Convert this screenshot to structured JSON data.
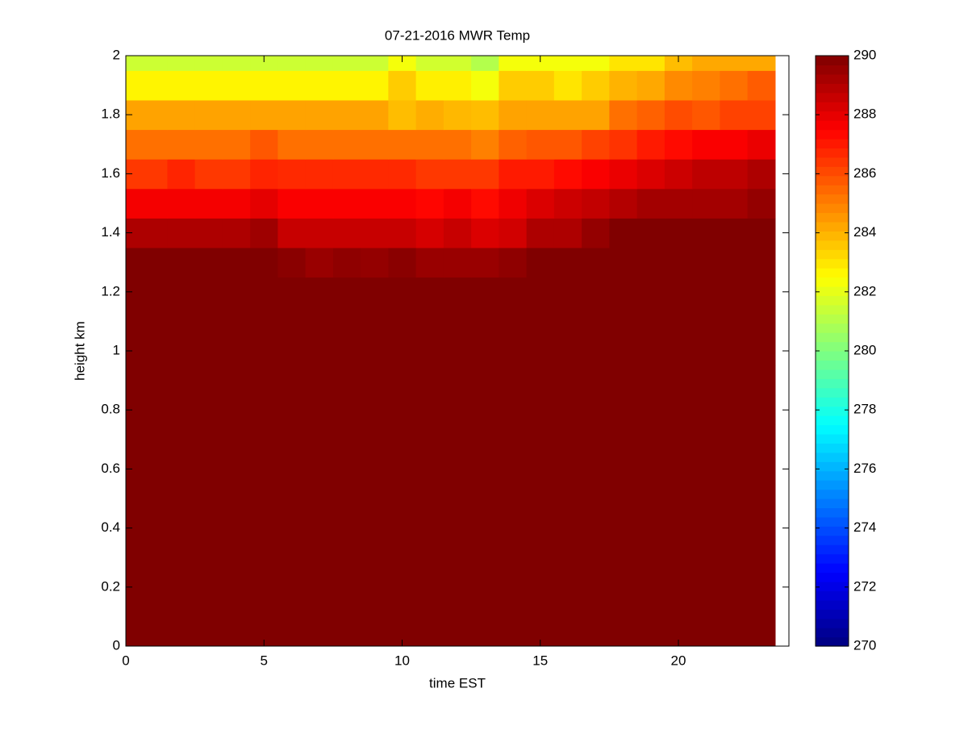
{
  "chart_data": {
    "type": "heatmap",
    "title": "07-21-2016 MWR Temp",
    "x_label": "time EST",
    "y_label": "height km",
    "x": [
      0,
      1,
      2,
      3,
      4,
      5,
      6,
      7,
      8,
      9,
      10,
      11,
      12,
      13,
      14,
      15,
      16,
      17,
      18,
      19,
      20,
      21,
      22,
      23
    ],
    "y": [
      0,
      0.1,
      0.2,
      0.3,
      0.4,
      0.5,
      0.6,
      0.7,
      0.8,
      0.9,
      1,
      1.1,
      1.2,
      1.3,
      1.4,
      1.5,
      1.6,
      1.7,
      1.8,
      1.9,
      2
    ],
    "z": [
      [
        290,
        290,
        290,
        290,
        290,
        290,
        290,
        290,
        290,
        290,
        290,
        290,
        290,
        290,
        290,
        290,
        290,
        290,
        290,
        290,
        290,
        290,
        290,
        290
      ],
      [
        290,
        290,
        290,
        290,
        290,
        290,
        290,
        290,
        290,
        290,
        290,
        290,
        290,
        290,
        290,
        290,
        290,
        290,
        290,
        290,
        290,
        290,
        290,
        290
      ],
      [
        290,
        290,
        290,
        290,
        290,
        290,
        290,
        290,
        290,
        290,
        290,
        290,
        290,
        290,
        290,
        290,
        290,
        290,
        290,
        290,
        290,
        290,
        290,
        290
      ],
      [
        290,
        290,
        290,
        290,
        290,
        290,
        290,
        290,
        290,
        290,
        290,
        290,
        290,
        290,
        290,
        290,
        290,
        290,
        290,
        290,
        290,
        290,
        290,
        290
      ],
      [
        290,
        290,
        290,
        290,
        290,
        290,
        290,
        290,
        290,
        290,
        290,
        290,
        290,
        290,
        290,
        290,
        290,
        290,
        290,
        290,
        290,
        290,
        290,
        290
      ],
      [
        290,
        290,
        290,
        290,
        290,
        290,
        290,
        290,
        290,
        290,
        290,
        290,
        290,
        290,
        290,
        290,
        290,
        290,
        290,
        290,
        290,
        290,
        290,
        290
      ],
      [
        290,
        290,
        290,
        290,
        290,
        290,
        290,
        290,
        290,
        290,
        290,
        290,
        290,
        290,
        290,
        290,
        290,
        290,
        290,
        290,
        290,
        290,
        290,
        290
      ],
      [
        290,
        290,
        290,
        290,
        290,
        290,
        290,
        290,
        290,
        290,
        290,
        290,
        290,
        290,
        290,
        290,
        290,
        290,
        290,
        290,
        290,
        290,
        290,
        290
      ],
      [
        290,
        290,
        290,
        290,
        290,
        290,
        290,
        290,
        290,
        290,
        290,
        290,
        290,
        290,
        290,
        290,
        290,
        290,
        290,
        290,
        290,
        290,
        290,
        290
      ],
      [
        290,
        290,
        290,
        290,
        290,
        290,
        290,
        290,
        290,
        290,
        290,
        290,
        290,
        290,
        290,
        290,
        290,
        290,
        290,
        290,
        290,
        290,
        290,
        290
      ],
      [
        290,
        290,
        290,
        290,
        290,
        290,
        290,
        290,
        290,
        290,
        290,
        290,
        290,
        290,
        290,
        290,
        290,
        290,
        290,
        290,
        290,
        290,
        290,
        290
      ],
      [
        290,
        290,
        290,
        290,
        290,
        290,
        290,
        290,
        290,
        290,
        290,
        290,
        290,
        290,
        290,
        290,
        290,
        290,
        290,
        290,
        290,
        290,
        290,
        290
      ],
      [
        290,
        290,
        290,
        290,
        290,
        290,
        290,
        290,
        290,
        290,
        290,
        290,
        290,
        290,
        290,
        290,
        290,
        290,
        290,
        290,
        290,
        290,
        290,
        290
      ],
      [
        290,
        290,
        290,
        290,
        290,
        290,
        289.8,
        289.5,
        289.7,
        289.6,
        289.8,
        289.5,
        289.5,
        289.5,
        289.7,
        290,
        290,
        290,
        290,
        290,
        290,
        290,
        290,
        290
      ],
      [
        289.1,
        289.1,
        289.1,
        289.1,
        289.1,
        289.4,
        288.6,
        288.6,
        288.6,
        288.6,
        288.6,
        288.3,
        288.6,
        288.2,
        288.4,
        289.1,
        289.1,
        289.6,
        290,
        290,
        290,
        290,
        290,
        290
      ],
      [
        287.7,
        287.7,
        287.7,
        287.7,
        287.7,
        288,
        287.6,
        287.6,
        287.6,
        287.6,
        287.6,
        287.4,
        287.7,
        287.3,
        287.8,
        288.2,
        288.5,
        288.7,
        289,
        289.3,
        289.3,
        289.3,
        289.3,
        289.6
      ],
      [
        286.4,
        286.4,
        286.8,
        286.4,
        286.4,
        286.8,
        286.7,
        286.7,
        286.7,
        286.7,
        286.7,
        286.4,
        286.4,
        286.4,
        287,
        287,
        287.3,
        287.6,
        287.9,
        288.2,
        288.5,
        288.8,
        288.8,
        289.1
      ],
      [
        285.3,
        285.3,
        285.3,
        285.3,
        285.3,
        285.8,
        285.3,
        285.3,
        285.3,
        285.3,
        285.3,
        285.3,
        285.3,
        285,
        285.6,
        285.8,
        285.8,
        286.2,
        286.5,
        287,
        287.3,
        287.6,
        287.6,
        287.9
      ],
      [
        284.3,
        284.3,
        284.3,
        284.3,
        284.3,
        284.3,
        284.3,
        284.3,
        284.3,
        284.3,
        283.8,
        284.1,
        283.9,
        283.8,
        284.3,
        284.3,
        284.3,
        284.3,
        285.3,
        285.6,
        286,
        285.8,
        286.2,
        286.2
      ],
      [
        282.7,
        282.7,
        282.7,
        282.7,
        282.7,
        282.7,
        282.7,
        282.7,
        282.7,
        282.7,
        283.5,
        282.8,
        282.8,
        282.3,
        283.5,
        283.5,
        283,
        283.5,
        284,
        284.2,
        284.8,
        285,
        285.3,
        285.7
      ],
      [
        281.5,
        281.5,
        281.5,
        281.5,
        281.5,
        281.5,
        281.5,
        281.5,
        281.5,
        281.5,
        282.3,
        281.6,
        281.6,
        281,
        282.3,
        282.3,
        282.3,
        282.3,
        283,
        283,
        283.8,
        284.2,
        284.2,
        284.2
      ]
    ],
    "colormap": "jet",
    "clim": [
      270,
      290
    ],
    "cticks": [
      270,
      272,
      274,
      276,
      278,
      280,
      282,
      284,
      286,
      288,
      290
    ],
    "xlim": [
      0,
      24
    ],
    "xticks": [
      0,
      5,
      10,
      15,
      20
    ],
    "ylim": [
      0,
      2
    ],
    "yticks": [
      0,
      0.2,
      0.4,
      0.6,
      0.8,
      1,
      1.2,
      1.4,
      1.6,
      1.8,
      2
    ]
  }
}
